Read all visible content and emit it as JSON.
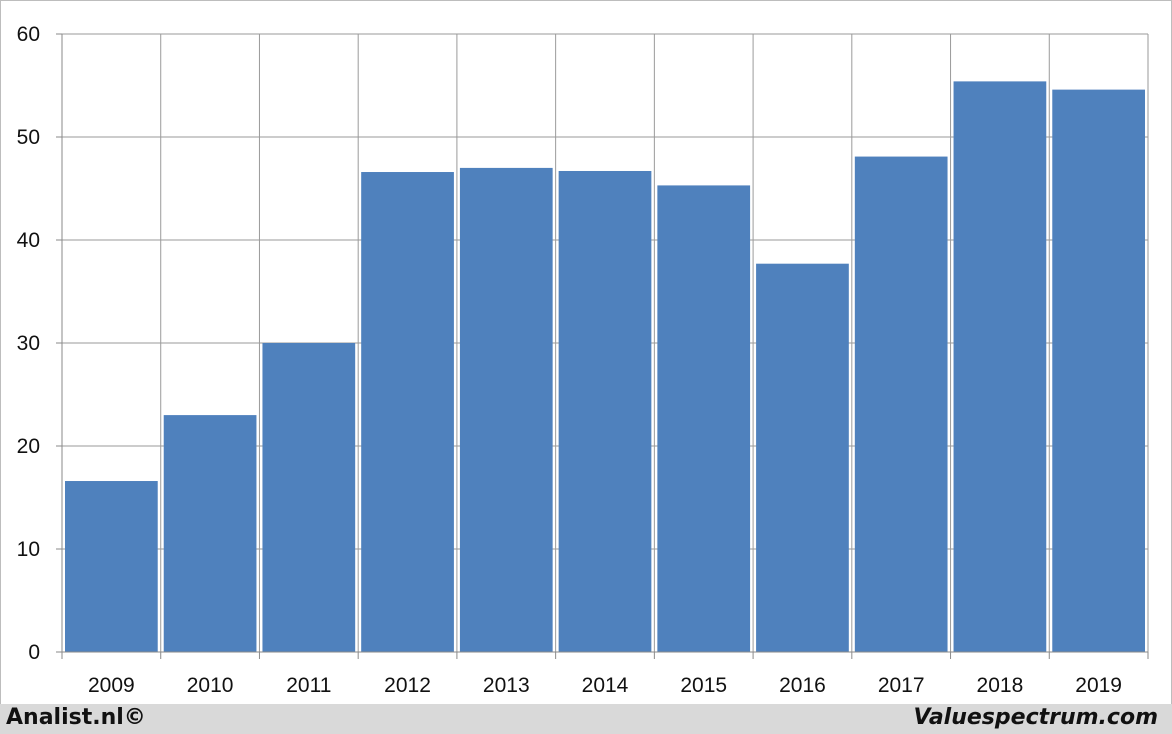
{
  "chart_data": {
    "type": "bar",
    "categories": [
      "2009",
      "2010",
      "2011",
      "2012",
      "2013",
      "2014",
      "2015",
      "2016",
      "2017",
      "2018",
      "2019"
    ],
    "values": [
      16.6,
      23.0,
      30.0,
      46.6,
      47.0,
      46.7,
      45.3,
      37.7,
      48.1,
      55.4,
      54.6
    ],
    "yticks": [
      "0",
      "10",
      "20",
      "30",
      "40",
      "50",
      "60"
    ],
    "ylim": [
      0,
      60
    ],
    "grid": true,
    "bar_color": "#4f81bd",
    "grid_color": "#9a9a9a"
  },
  "footer": {
    "left_text": "Analist.nl©",
    "right_text": "Valuespectrum.com"
  }
}
